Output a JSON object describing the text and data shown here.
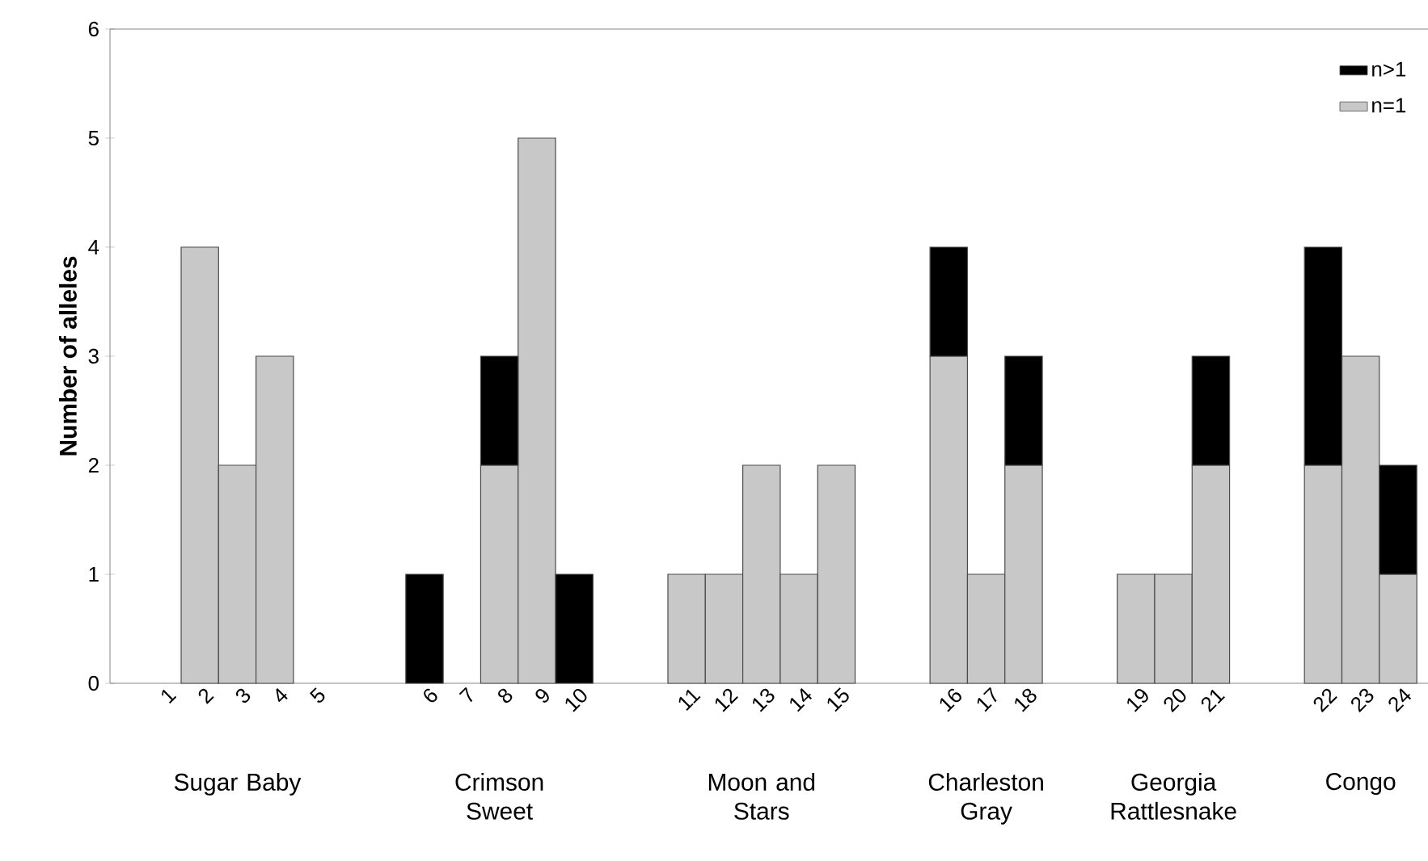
{
  "chart_data": {
    "type": "bar",
    "stacked": true,
    "ylabel": "Number of alleles",
    "categories": [
      "1",
      "2",
      "3",
      "4",
      "5",
      null,
      null,
      "6",
      "7",
      "8",
      "9",
      "10",
      null,
      null,
      "11",
      "12",
      "13",
      "14",
      "15",
      null,
      null,
      "16",
      "17",
      "18",
      null,
      null,
      "19",
      "20",
      "21",
      null,
      null,
      "22",
      "23",
      "24"
    ],
    "series": [
      {
        "name": "n=1",
        "color": "#c8c8c8",
        "values": [
          0,
          4,
          2,
          3,
          0,
          null,
          null,
          0,
          0,
          2,
          5,
          0,
          null,
          null,
          1,
          1,
          2,
          1,
          2,
          null,
          null,
          3,
          1,
          2,
          null,
          null,
          1,
          1,
          2,
          null,
          null,
          2,
          3,
          1
        ]
      },
      {
        "name": "n>1",
        "color": "#000000",
        "values": [
          0,
          0,
          0,
          0,
          0,
          null,
          null,
          1,
          0,
          1,
          0,
          1,
          null,
          null,
          0,
          0,
          0,
          0,
          0,
          null,
          null,
          1,
          0,
          1,
          null,
          null,
          0,
          0,
          1,
          null,
          null,
          2,
          0,
          1
        ]
      }
    ],
    "ylim": [
      0,
      6
    ],
    "yticks": [
      0,
      1,
      2,
      3,
      4,
      5,
      6
    ],
    "legend": "top right",
    "annotations": [
      "Sugar Baby",
      "Crimson Sweet",
      "Moon and Stars",
      "Charleston Gray",
      "Georgia Rattlesnake",
      "Congo"
    ]
  }
}
